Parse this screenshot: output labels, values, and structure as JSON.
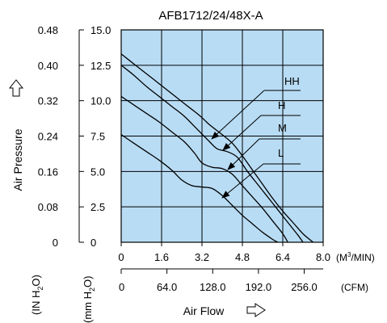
{
  "chart_data": {
    "type": "line",
    "title": "AFB1712/24/48X-A",
    "xlabel": "Air Flow",
    "ylabel": "Air Pressure",
    "x_unit_primary": "(M³/MIN)",
    "x_unit_primary_base": "(M",
    "x_unit_primary_sup": "3",
    "x_unit_primary_tail": "/MIN)",
    "x_unit_secondary": "(CFM)",
    "y_unit_inner": "(mm H₂O)",
    "y_unit_outer": "(IN H₂O)",
    "y_unit_inner_pre": "(mm H",
    "y_unit_inner_sub": "2",
    "y_unit_inner_post": "O)",
    "y_unit_outer_pre": "(IN H",
    "y_unit_outer_sub": "2",
    "y_unit_outer_post": "O)",
    "xlim": [
      0,
      8.0
    ],
    "ylim": [
      0,
      15.0
    ],
    "x_ticks": [
      "0",
      "1.6",
      "3.2",
      "4.8",
      "6.4",
      "8.0"
    ],
    "x_tick_values": [
      0,
      1.6,
      3.2,
      4.8,
      6.4,
      8.0
    ],
    "cfm_ticks": [
      "0",
      "64.0",
      "128.0",
      "192.0",
      "256.0"
    ],
    "cfm_tick_values": [
      0,
      64,
      128,
      192,
      256
    ],
    "y_ticks_mm": [
      "0",
      "2.5",
      "5.0",
      "7.5",
      "10.0",
      "12.5",
      "15.0"
    ],
    "y_tick_values": [
      0,
      2.5,
      5.0,
      7.5,
      10.0,
      12.5,
      15.0
    ],
    "y_ticks_in": [
      "0",
      "0.08",
      "0.16",
      "0.24",
      "0.32",
      "0.40",
      "0.48"
    ],
    "y_tick_values_in": [
      0,
      0.08,
      0.16,
      0.24,
      0.32,
      0.4,
      0.48
    ],
    "grid": true,
    "legend": "right-side labels with arrows",
    "plot_background": "#b8dcf4",
    "line_color": "#000000",
    "series": [
      {
        "name": "HH",
        "x": [
          0,
          0.5,
          1.0,
          1.5,
          2.0,
          2.5,
          3.0,
          3.2,
          3.5,
          4.0,
          4.4,
          4.8,
          5.2,
          5.6,
          6.0,
          6.4,
          6.8,
          7.2,
          7.6
        ],
        "y": [
          13.3,
          12.6,
          11.9,
          11.2,
          10.5,
          9.8,
          9.1,
          8.8,
          8.3,
          7.6,
          7.0,
          6.1,
          5.1,
          4.1,
          3.1,
          2.2,
          1.4,
          0.6,
          0
        ]
      },
      {
        "name": "H",
        "x": [
          0,
          0.5,
          1.0,
          1.5,
          2.0,
          2.5,
          3.0,
          3.5,
          3.8,
          4.2,
          4.6,
          5.0,
          5.4,
          5.8,
          6.2,
          6.6,
          7.0,
          7.2
        ],
        "y": [
          12.5,
          11.8,
          11.0,
          10.3,
          9.6,
          8.9,
          8.0,
          7.1,
          6.6,
          6.4,
          6.0,
          5.0,
          4.1,
          3.2,
          2.3,
          1.4,
          0.5,
          0
        ]
      },
      {
        "name": "M",
        "x": [
          0,
          0.5,
          1.0,
          1.5,
          2.0,
          2.5,
          2.9,
          3.2,
          3.6,
          4.0,
          4.4,
          4.8,
          5.2,
          5.6,
          6.0,
          6.4,
          6.6
        ],
        "y": [
          10.3,
          9.7,
          9.1,
          8.5,
          7.8,
          7.1,
          6.3,
          5.6,
          5.3,
          5.2,
          4.8,
          4.0,
          3.2,
          2.4,
          1.5,
          0.6,
          0
        ]
      },
      {
        "name": "L",
        "x": [
          0,
          0.5,
          1.0,
          1.5,
          2.0,
          2.4,
          2.8,
          3.2,
          3.6,
          4.0,
          4.4,
          4.8,
          5.2,
          5.6,
          6.0,
          6.2
        ],
        "y": [
          7.6,
          7.0,
          6.4,
          5.8,
          5.1,
          4.4,
          4.0,
          3.9,
          3.8,
          3.3,
          2.6,
          1.9,
          1.3,
          0.7,
          0.2,
          0
        ]
      }
    ]
  }
}
